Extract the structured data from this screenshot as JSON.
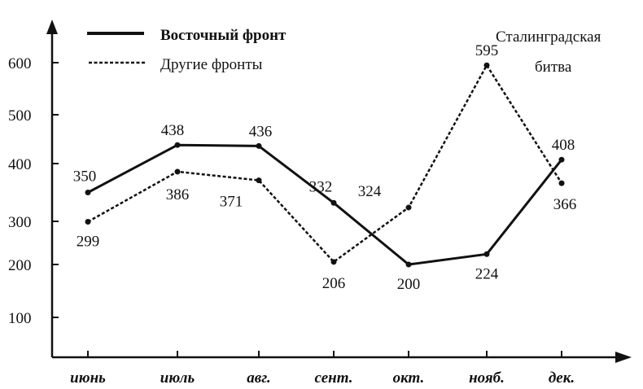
{
  "chart_data": {
    "type": "line",
    "title": "",
    "xlabel": "",
    "ylabel": "",
    "categories": [
      "июнь",
      "июль",
      "авг.",
      "сент.",
      "окт.",
      "нояб.",
      "дек."
    ],
    "series": [
      {
        "name": "Восточный фронт",
        "style": "solid",
        "values": [
          350,
          438,
          436,
          332,
          200,
          224,
          408
        ]
      },
      {
        "name": "Другие фронты",
        "style": "dashed",
        "values": [
          299,
          386,
          371,
          206,
          324,
          595,
          366
        ]
      }
    ],
    "yticks": [
      100,
      200,
      300,
      400,
      500,
      600
    ],
    "ylim": [
      0,
      650
    ],
    "grid": false,
    "legend_position": "top-left",
    "annotations": [
      "Сталинградская",
      "битва"
    ]
  },
  "legend": {
    "items": [
      {
        "label": "Восточный фронт",
        "style": "solid"
      },
      {
        "label": "Другие фронты",
        "style": "dashed"
      }
    ]
  },
  "annotation": {
    "line1": "Сталинградская",
    "line2": "битва"
  },
  "colors": {
    "line": "#111111",
    "background": "#ffffff"
  }
}
